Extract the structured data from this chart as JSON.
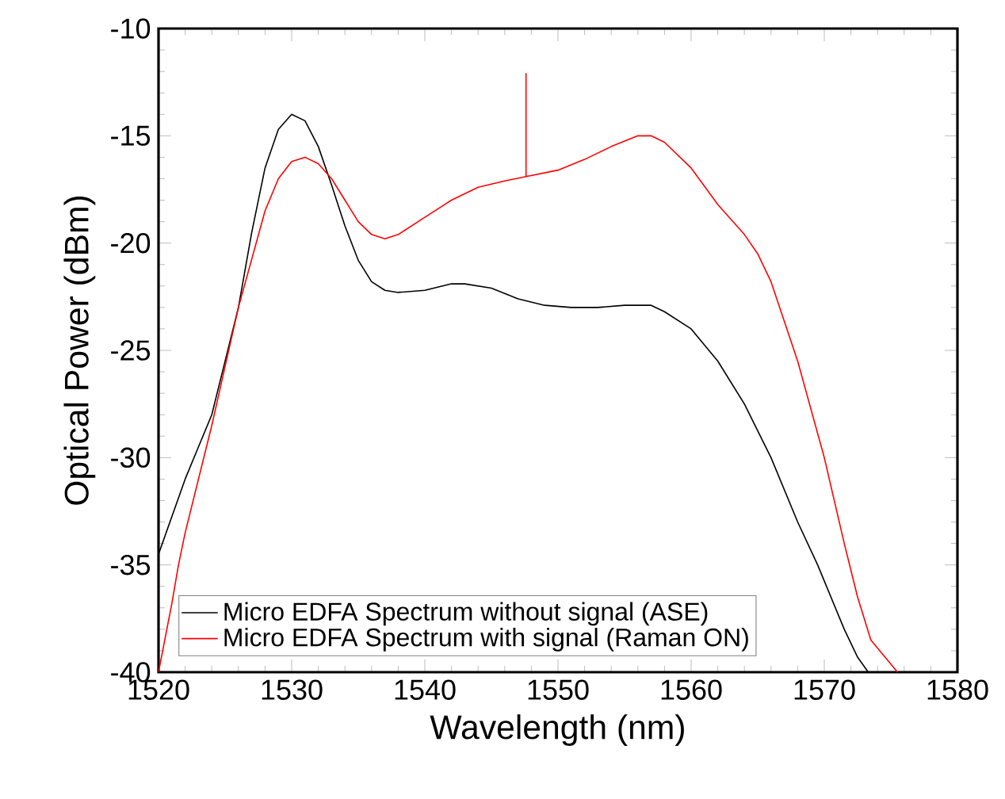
{
  "chart_data": {
    "type": "line",
    "xlabel": "Wavelength (nm)",
    "ylabel": "Optical Power (dBm)",
    "xlim": [
      1520,
      1580
    ],
    "ylim": [
      -40,
      -10
    ],
    "xticks": [
      1520,
      1530,
      1540,
      1550,
      1560,
      1570,
      1580
    ],
    "yticks": [
      -40,
      -35,
      -30,
      -25,
      -20,
      -15,
      -10
    ],
    "grid": false,
    "legend": "bottom left",
    "marker": "none",
    "line_style": "solid",
    "series": [
      {
        "name": "Micro EDFA Spectrum without signal (ASE)",
        "color": "#000000",
        "x": [
          1520,
          1522,
          1524,
          1526,
          1527,
          1528,
          1529,
          1530,
          1531,
          1532,
          1533,
          1534,
          1535,
          1536,
          1537,
          1538,
          1540,
          1542,
          1543,
          1545,
          1547,
          1549,
          1551,
          1553,
          1555,
          1557,
          1558,
          1560,
          1562,
          1564,
          1566,
          1568,
          1569.5,
          1570.5,
          1571.5,
          1572.5,
          1573.3
        ],
        "values": [
          -34.5,
          -31,
          -28,
          -23,
          -19.5,
          -16.5,
          -14.7,
          -14,
          -14.3,
          -15.5,
          -17.3,
          -19.2,
          -20.8,
          -21.8,
          -22.2,
          -22.3,
          -22.2,
          -21.9,
          -21.9,
          -22.1,
          -22.6,
          -22.9,
          -23,
          -23,
          -22.9,
          -22.9,
          -23.2,
          -24,
          -25.5,
          -27.5,
          -30,
          -33,
          -35,
          -36.5,
          -38,
          -39.3,
          -40
        ]
      },
      {
        "name": "Micro EDFA Spectrum with signal (Raman ON)",
        "color": "#ff0000",
        "x": [
          1520,
          1521,
          1521.5,
          1522,
          1524,
          1526,
          1528,
          1529,
          1530,
          1531,
          1532,
          1533,
          1534,
          1535,
          1536,
          1537,
          1538,
          1540,
          1542,
          1544,
          1546,
          1547.6,
          1547.6,
          1547.6,
          1550,
          1552,
          1554,
          1556,
          1557,
          1558,
          1560,
          1562,
          1564,
          1565,
          1566,
          1568,
          1570,
          1571.5,
          1572.5,
          1573.5,
          1575.5
        ],
        "values": [
          -40,
          -36.8,
          -35,
          -33.5,
          -28.5,
          -23,
          -18.5,
          -17,
          -16.2,
          -16,
          -16.3,
          -17,
          -18,
          -19,
          -19.6,
          -19.8,
          -19.6,
          -18.8,
          -18,
          -17.4,
          -17.1,
          -16.9,
          -12.1,
          -16.9,
          -16.6,
          -16.1,
          -15.5,
          -15,
          -15,
          -15.3,
          -16.5,
          -18.2,
          -19.6,
          -20.5,
          -21.8,
          -25.5,
          -30,
          -34,
          -36.5,
          -38.5,
          -40
        ]
      }
    ]
  }
}
